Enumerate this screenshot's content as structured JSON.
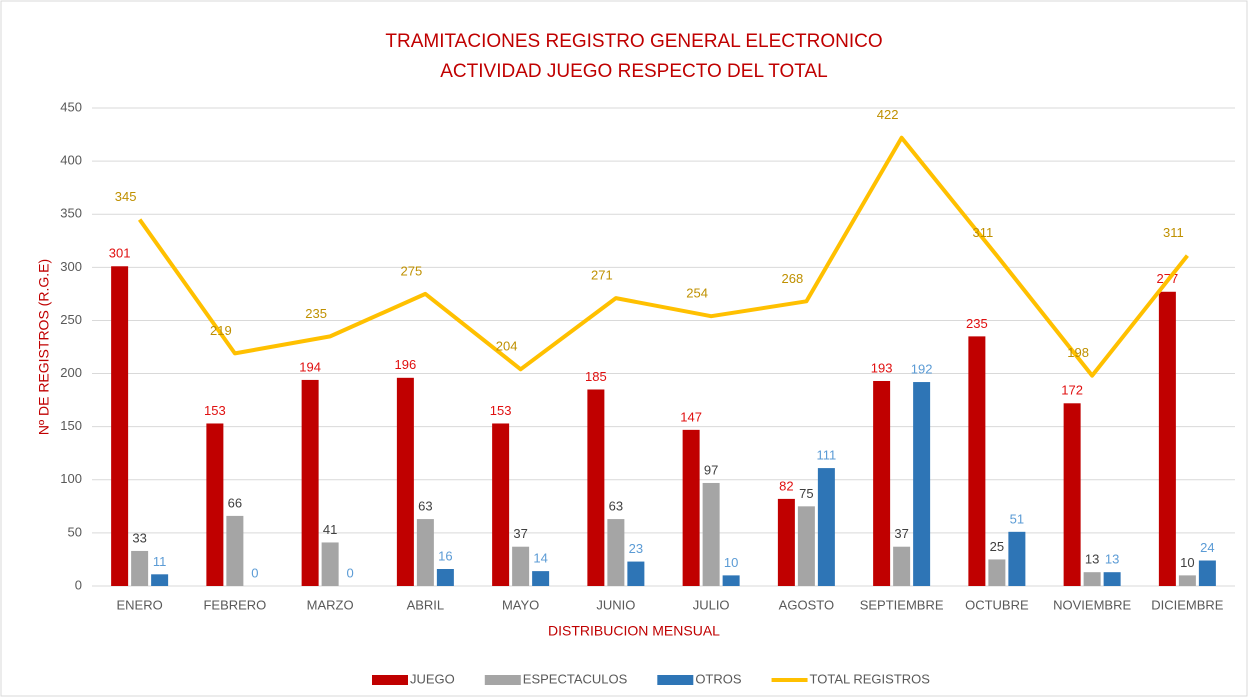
{
  "chart_data": {
    "type": "bar",
    "title": "TRAMITACIONES REGISTRO GENERAL ELECTRONICO",
    "subtitle": "ACTIVIDAD JUEGO RESPECTO DEL TOTAL",
    "x_label": "DISTRIBUCION MENSUAL",
    "y_label": "Nº DE REGISTROS (R.G.E)",
    "categories": [
      "ENERO",
      "FEBRERO",
      "MARZO",
      "ABRIL",
      "MAYO",
      "JUNIO",
      "JULIO",
      "AGOSTO",
      "SEPTIEMBRE",
      "OCTUBRE",
      "NOVIEMBRE",
      "DICIEMBRE"
    ],
    "series": [
      {
        "name": "JUEGO",
        "color": "#c00000",
        "label_color": "#e01010",
        "values": [
          301,
          153,
          194,
          196,
          153,
          185,
          147,
          82,
          193,
          235,
          172,
          277
        ]
      },
      {
        "name": "ESPECTACULOS",
        "color": "#a5a5a5",
        "label_color": "#404040",
        "values": [
          33,
          66,
          41,
          63,
          37,
          63,
          97,
          75,
          37,
          25,
          13,
          10
        ]
      },
      {
        "name": "OTROS",
        "color": "#2e75b6",
        "label_color": "#5b9bd5",
        "values": [
          11,
          0,
          0,
          16,
          14,
          23,
          10,
          111,
          192,
          51,
          13,
          24
        ]
      },
      {
        "name": "TOTAL REGISTROS",
        "type": "line",
        "color": "#ffc000",
        "label_color": "#bf9000",
        "values": [
          345,
          219,
          235,
          275,
          204,
          271,
          254,
          268,
          422,
          311,
          198,
          311
        ]
      }
    ],
    "ylim": [
      0,
      450
    ],
    "yticks": [
      0,
      50,
      100,
      150,
      200,
      250,
      300,
      350,
      400,
      450
    ],
    "grid": true,
    "legend": "bottom"
  }
}
